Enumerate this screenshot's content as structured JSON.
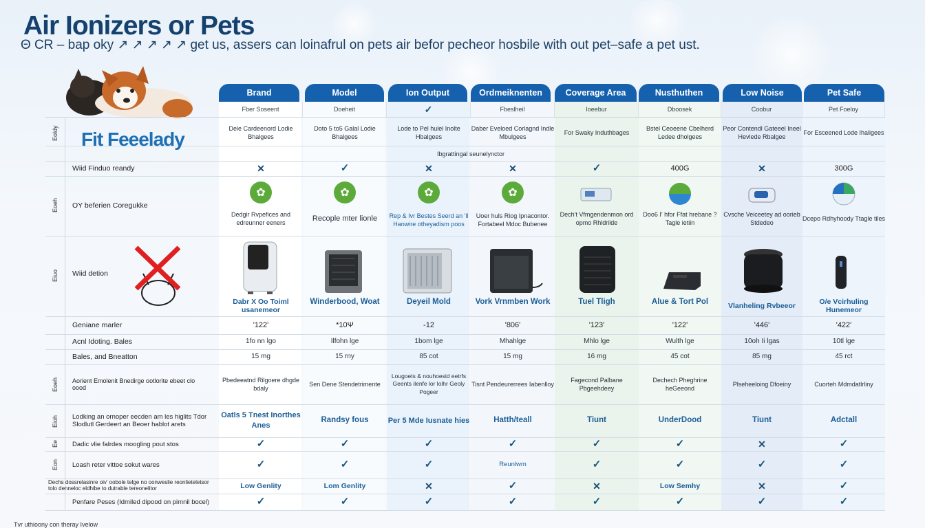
{
  "title": "Air Ionizers or Pets",
  "subtitle": "Θ CR – bap oky ↗ ↗ ↗ ↗ ↗ get us, assers can loinafrul on pets air befor pecheor hosbile with out pet–safe a pet ust.",
  "overlay_text": "Fit Feeelady",
  "columns": [
    {
      "header": "Brand",
      "sub": "Fber Soseent"
    },
    {
      "header": "Model",
      "sub": "Doeheit"
    },
    {
      "header": "Ion Output",
      "sub": "✓"
    },
    {
      "header": "Ordmeiknenten",
      "sub": "Fbeslheil"
    },
    {
      "header": "Coverage Area",
      "sub": "Ioeebur"
    },
    {
      "header": "Nusthuthen",
      "sub": "Dboosek"
    },
    {
      "header": "Low Noise",
      "sub": "Coobur"
    },
    {
      "header": "Pet Safe",
      "sub": "Pet Foeloy"
    }
  ],
  "rows": {
    "r1": {
      "side": "Eoldy",
      "label": "",
      "cells": [
        "Dele Cardeenord Lodie Bhalgees",
        "Doto 5 to5 Galal Lodie Bhalgees",
        "Lode to Pel hulel Inolte Hbalgees",
        "Daber Eveloed Corlagnd Indle Mbulgees",
        "For Swaky Induthbages",
        "Bstel Ceoeene Cbelherd Ledee dholgees",
        "Peor Contendl Gateeel Ineel Hevlede Rbalgee",
        "For Esceened Lode Ihaligees"
      ]
    },
    "r1b": {
      "cells": [
        "",
        "",
        "Ibgrattingal seunelynctor",
        "",
        "",
        "",
        "",
        ""
      ]
    },
    "r2": {
      "label": "Wiid Finduo reandy",
      "cells": [
        "✕",
        "✓",
        "✕",
        "✕",
        "✓",
        "400G",
        "✕",
        "300G"
      ]
    },
    "r3": {
      "side": "Eoeh",
      "label": "OY beferien   Coregukke",
      "cells": [
        "Dedgir Rvpefices and edreunner eeners",
        "Recople mter lionle",
        "Rep & Ivr Bestes Seerd an 'll Hanwire otheyadism poos",
        "Uoer huls Riog Ipnacontor. Fortabeel Mdoc Bubenee",
        "Dech't Vfmgendenmon ord opmo Rhldrilde",
        "Doo6 I' hfor Ffat hrebane ?Tagle ietiin",
        "Cvsche Veiceetey ad oorieb Stdedeo",
        "Dcepo Rdhyhoody Ttagle tiles"
      ]
    },
    "r4": {
      "side": "Eiuo",
      "label": "Wiid detion",
      "cells": [
        "Dabr X Oo Toiml usanemeor",
        "Winderbood, Woat",
        "Deyeil Mold",
        "Vork Vrnmben Work",
        "Tuel Tligh",
        "Alue & Tort Pol",
        "Vlanheling Rvbeeor",
        "O/e Vcirhuling Hunemeor"
      ]
    },
    "r5": {
      "label": "Geniane marler",
      "cells": [
        "'122'",
        "*10Ψ",
        "-12",
        "'806'",
        "'123'",
        "'122'",
        "'446'",
        "'422'"
      ]
    },
    "r6": {
      "label": "Acnl Idoting. Bales",
      "cells": [
        "1fo nn lgo",
        "Ilfohn lge",
        "1bom lge",
        "Mhahlge",
        "Mhlo lge",
        "Wulth lge",
        "10oh Ii lgas",
        "10tl lge"
      ]
    },
    "r7": {
      "label": "Bales, and Bneatton",
      "cells": [
        "15 mg",
        "15 rny",
        "85 cot",
        "15 mg",
        "16 mg",
        "45 cot",
        "85 mg",
        "45 rct"
      ]
    },
    "r8": {
      "side": "Eoeh",
      "label": "Aorient Emolenit Bnedirge ootlorite ebeet clo oood",
      "cells": [
        "Pbedeeatnd Rilgoere dhgde bdaly",
        "Sen Dene Stendetrimente",
        "Lougoets & nouhoesid eetrfs Geents ilenfe lor lolhr Geoly Pogeer",
        "Tisnt Pendeurerrees Iabenlloy",
        "Fagecond Palbane Pbgeehdeey",
        "Dechech Pheghrine heGeeond",
        "Plseheeloing Dfoeiny",
        "Cuorteh Mdmdatlrliny"
      ]
    },
    "r9": {
      "side": "Eioh",
      "label": "Lodking an ornoper eecden am les higlits Tdor Slodlutl Gerdeert an Beoer hablot arets",
      "cells": [
        "Oatls 5 Tnest Inorthes Anes",
        "Randsy fous",
        "Per 5 Mde Iusnate hies",
        "Hatth/teall",
        "Tiunt",
        "UnderDood",
        "Tiunt",
        "Adctall"
      ]
    },
    "r10": {
      "side": "Ee",
      "label": "Dadic vlie falrdes moogling pout stos",
      "cells": [
        "✓",
        "✓",
        "✓",
        "✓",
        "✓",
        "✓",
        "✕",
        "✓"
      ]
    },
    "r11": {
      "side": "Eon",
      "label": "Loash reter vittoe sokut wares",
      "cells": [
        "✓",
        "✓",
        "✓",
        "Reunlwm",
        "✓",
        "✓",
        "✓",
        "✓"
      ]
    },
    "r12": {
      "label": "Dechs dossrelasinre oiv' oobole telge no oonweslie reonlieteletsor tolo denneloc eldhibe to dutrable tereonelitor",
      "cells": [
        "Low Genlity",
        "Lom Genlity",
        "✕",
        "✓",
        "✕",
        "Low Semhy",
        "✕",
        "✓"
      ]
    },
    "r13": {
      "label": "Penfare Peses (Idmiled dipood on pimnil bocel)",
      "cells": [
        "✓",
        "✓",
        "✓",
        "✓",
        "✓",
        "✓",
        "✓",
        "✓"
      ]
    }
  },
  "footer": "Tvr uthioony con theray Ivelow",
  "colors": {
    "header": "#1561ad",
    "accent": "#5cab3a",
    "title": "#14416e"
  }
}
